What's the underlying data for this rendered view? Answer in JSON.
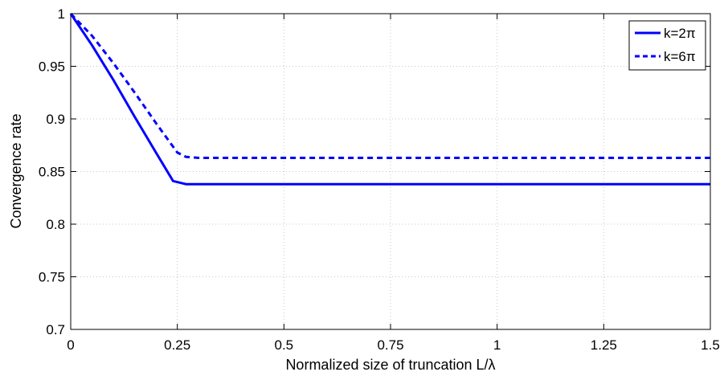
{
  "chart_data": {
    "type": "line",
    "title": "",
    "xlabel": "Normalized size of truncation L/λ",
    "ylabel": "Convergence rate",
    "xlim": [
      0,
      1.5
    ],
    "ylim": [
      0.7,
      1
    ],
    "xticks": [
      0,
      0.25,
      0.5,
      0.75,
      1,
      1.25,
      1.5
    ],
    "xtick_labels": [
      "0",
      "0.25",
      "0.5",
      "0.75",
      "1",
      "1.25",
      "1.5"
    ],
    "yticks": [
      0.7,
      0.75,
      0.8,
      0.85,
      0.9,
      0.95,
      1
    ],
    "ytick_labels": [
      "0.7",
      "0.75",
      "0.8",
      "0.85",
      "0.9",
      "0.95",
      "1"
    ],
    "grid": true,
    "legend_position": "top-right",
    "series": [
      {
        "name": "k=2π",
        "style": "solid",
        "color": "#0000ff",
        "x": [
          0,
          0.05,
          0.1,
          0.15,
          0.2,
          0.24,
          0.27,
          0.3,
          0.5,
          0.75,
          1,
          1.25,
          1.5
        ],
        "y": [
          1,
          0.97,
          0.937,
          0.902,
          0.868,
          0.841,
          0.838,
          0.838,
          0.838,
          0.838,
          0.838,
          0.838,
          0.838
        ]
      },
      {
        "name": "k=6π",
        "style": "dashed",
        "color": "#0000ff",
        "x": [
          0,
          0.05,
          0.1,
          0.15,
          0.2,
          0.25,
          0.27,
          0.3,
          0.5,
          0.75,
          1,
          1.25,
          1.5
        ],
        "y": [
          1,
          0.979,
          0.953,
          0.925,
          0.896,
          0.868,
          0.864,
          0.863,
          0.863,
          0.863,
          0.863,
          0.863,
          0.863
        ]
      }
    ]
  }
}
